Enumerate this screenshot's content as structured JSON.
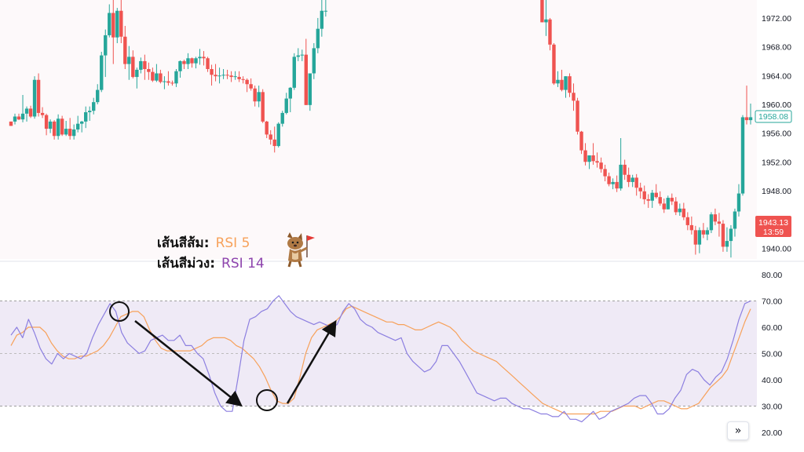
{
  "legend": {
    "orange_label": "เส้นสีส้ม:",
    "orange_value": "RSI 5",
    "purple_label": "เส้นสีม่วง:",
    "purple_value": "RSI 14",
    "orange_color": "#f7a15a",
    "purple_color": "#8e44ad"
  },
  "price_tags": {
    "current_price": "1958.08",
    "current_color": "#26a69a",
    "red_price": "1943.13",
    "red_countdown": "13:59",
    "red_color": "#ef5350"
  },
  "scroll_button_label": "»",
  "icons": {
    "scroll": "double-chevron-right-icon",
    "mascot": "dog-with-flag-mascot"
  },
  "chart_data": [
    {
      "type": "candlestick",
      "title": "",
      "y_ticks": [
        "1972.00",
        "1968.00",
        "1964.00",
        "1960.00",
        "1956.00",
        "1952.00",
        "1948.00",
        "1944.00",
        "1940.00"
      ],
      "ylim": [
        1938.5,
        1974.5
      ],
      "up_color": "#26a69a",
      "down_color": "#ef5350",
      "note": "values in price units; null = bar off-screen",
      "candles": [
        [
          1957.6,
          1957.6,
          1957.0,
          1957.0
        ],
        [
          1957.6,
          1958.7,
          1957.2,
          1958.3
        ],
        [
          1958.3,
          1958.7,
          1957.8,
          1957.9
        ],
        [
          1957.9,
          1961.3,
          1957.5,
          1958.7
        ],
        [
          1958.7,
          1959.7,
          1957.6,
          1959.4
        ],
        [
          1959.4,
          1959.8,
          1958.1,
          1958.3
        ],
        [
          1958.3,
          1963.9,
          1958.0,
          1963.4
        ],
        [
          1963.4,
          1964.3,
          1958.3,
          1958.8
        ],
        [
          1958.8,
          1959.6,
          1958.1,
          1958.5
        ],
        [
          1958.5,
          1958.7,
          1955.7,
          1956.6
        ],
        [
          1956.6,
          1957.9,
          1956.0,
          1957.6
        ],
        [
          1957.6,
          1957.8,
          1955.1,
          1955.6
        ],
        [
          1955.6,
          1958.6,
          1955.1,
          1958.0
        ],
        [
          1958.0,
          1958.4,
          1955.6,
          1955.8
        ],
        [
          1955.8,
          1957.7,
          1955.6,
          1956.6
        ],
        [
          1956.6,
          1958.1,
          1955.1,
          1955.6
        ],
        [
          1955.6,
          1957.2,
          1955.1,
          1956.5
        ],
        [
          1956.5,
          1958.4,
          1956.1,
          1957.3
        ],
        [
          1957.3,
          1957.7,
          1956.1,
          1957.6
        ],
        [
          1957.6,
          1959.7,
          1956.7,
          1958.9
        ],
        [
          1958.9,
          1959.7,
          1957.7,
          1959.1
        ],
        [
          1959.1,
          1960.9,
          1958.6,
          1960.3
        ],
        [
          1960.3,
          1962.8,
          1960.0,
          1962.0
        ],
        [
          1962.0,
          1967.3,
          1961.7,
          1966.8
        ],
        [
          1966.8,
          1970.4,
          1963.8,
          1969.6
        ],
        [
          1969.6,
          1973.9,
          1969.3,
          1972.7
        ],
        [
          1972.7,
          1974.5,
          1965.6,
          1969.3
        ],
        [
          1969.3,
          1973.4,
          1968.5,
          1973.0
        ],
        [
          1973.0,
          1974.5,
          1968.5,
          1969.4
        ],
        [
          1969.4,
          1970.9,
          1964.9,
          1965.6
        ],
        [
          1965.6,
          1968.1,
          1963.4,
          1966.6
        ],
        [
          1966.6,
          1967.5,
          1963.6,
          1963.8
        ],
        [
          1963.8,
          1965.1,
          1962.2,
          1964.8
        ],
        [
          1964.8,
          1966.5,
          1964.3,
          1966.0
        ],
        [
          1966.0,
          1966.9,
          1963.4,
          1964.9
        ],
        [
          1964.9,
          1965.8,
          1963.4,
          1964.5
        ],
        [
          1964.5,
          1965.1,
          1963.1,
          1963.3
        ],
        [
          1963.3,
          1965.6,
          1963.1,
          1964.3
        ],
        [
          1964.3,
          1964.8,
          1962.9,
          1963.1
        ],
        [
          1963.1,
          1963.9,
          1962.1,
          1963.2
        ],
        [
          1963.2,
          1964.6,
          1962.6,
          1963.0
        ],
        [
          1963.0,
          1963.3,
          1962.6,
          1962.9
        ],
        [
          1962.9,
          1964.9,
          1962.4,
          1964.6
        ],
        [
          1964.6,
          1966.1,
          1963.7,
          1966.0
        ],
        [
          1966.0,
          1966.2,
          1964.9,
          1965.6
        ],
        [
          1965.6,
          1967.1,
          1964.9,
          1966.4
        ],
        [
          1966.4,
          1966.5,
          1965.1,
          1965.7
        ],
        [
          1965.7,
          1966.6,
          1965.0,
          1966.4
        ],
        [
          1966.4,
          1967.7,
          1965.5,
          1966.6
        ],
        [
          1966.6,
          1967.4,
          1965.4,
          1966.4
        ],
        [
          1966.4,
          1966.6,
          1964.5,
          1964.9
        ],
        [
          1964.9,
          1965.5,
          1962.6,
          1964.1
        ],
        [
          1964.1,
          1965.6,
          1963.2,
          1963.9
        ],
        [
          1963.9,
          1965.1,
          1962.9,
          1964.0
        ],
        [
          1964.0,
          1964.9,
          1963.5,
          1964.1
        ],
        [
          1964.1,
          1964.8,
          1963.5,
          1964.0
        ],
        [
          1964.0,
          1964.6,
          1963.1,
          1963.8
        ],
        [
          1963.8,
          1964.6,
          1963.4,
          1963.9
        ],
        [
          1963.8,
          1964.6,
          1963.1,
          1963.5
        ],
        [
          1963.5,
          1963.9,
          1962.9,
          1963.4
        ],
        [
          1963.4,
          1963.6,
          1961.7,
          1962.8
        ],
        [
          1962.8,
          1963.6,
          1961.9,
          1962.2
        ],
        [
          1962.2,
          1962.6,
          1959.7,
          1960.4
        ],
        [
          1960.4,
          1962.6,
          1959.6,
          1961.7
        ],
        [
          1961.7,
          1962.1,
          1957.4,
          1957.6
        ],
        [
          1957.6,
          1957.7,
          1955.3,
          1955.8
        ],
        [
          1955.8,
          1956.4,
          1954.4,
          1955.1
        ],
        [
          1955.1,
          1956.9,
          1953.3,
          1954.2
        ],
        [
          1954.2,
          1957.5,
          1954.0,
          1957.3
        ],
        [
          1957.3,
          1959.1,
          1956.9,
          1958.8
        ],
        [
          1958.8,
          1961.6,
          1958.6,
          1960.8
        ],
        [
          1960.8,
          1962.4,
          1958.9,
          1962.3
        ],
        [
          1962.3,
          1967.1,
          1962.0,
          1966.6
        ],
        [
          1966.6,
          1967.8,
          1966.0,
          1966.8
        ],
        [
          1966.8,
          1967.6,
          1966.0,
          1966.9
        ],
        [
          1966.9,
          1969.1,
          1959.9,
          1959.9
        ],
        [
          1959.9,
          1964.3,
          1959.1,
          1964.3
        ],
        [
          1964.3,
          1968.5,
          1963.5,
          1967.8
        ],
        [
          1967.8,
          1972.0,
          1967.1,
          1970.5
        ],
        [
          1970.5,
          1974.5,
          1969.4,
          1973.0
        ],
        [
          1973.0,
          1974.5,
          1972.2,
          1973.0
        ],
        null,
        null,
        null,
        null,
        null,
        null,
        null,
        null,
        null,
        null,
        null,
        null,
        null,
        null,
        null,
        null,
        null,
        null,
        null,
        null,
        null,
        null,
        null,
        null,
        null,
        null,
        null,
        null,
        null,
        null,
        null,
        null,
        null,
        null,
        null,
        null,
        null,
        null,
        null,
        null,
        null,
        null,
        null,
        null,
        null,
        null,
        null,
        null,
        null,
        null,
        null,
        null,
        null,
        null,
        [
          1974.5,
          1974.5,
          1971.4,
          1971.4
        ],
        [
          1971.4,
          1974.5,
          1969.5,
          1971.8
        ],
        [
          1971.8,
          1972.0,
          1967.5,
          1968.3
        ],
        [
          1968.3,
          1968.5,
          1962.7,
          1962.9
        ],
        [
          1962.9,
          1964.6,
          1962.4,
          1963.4
        ],
        [
          1963.4,
          1964.8,
          1961.8,
          1962.0
        ],
        [
          1962.0,
          1963.9,
          1960.9,
          1963.9
        ],
        [
          1963.9,
          1964.3,
          1961.0,
          1961.6
        ],
        [
          1961.6,
          1962.9,
          1959.1,
          1960.5
        ],
        [
          1960.5,
          1960.9,
          1955.8,
          1956.2
        ],
        [
          1956.2,
          1956.3,
          1953.1,
          1953.6
        ],
        [
          1953.6,
          1954.6,
          1951.5,
          1952.0
        ],
        [
          1952.0,
          1952.9,
          1951.0,
          1952.9
        ],
        [
          1952.9,
          1954.6,
          1951.6,
          1952.1
        ],
        [
          1952.1,
          1953.3,
          1951.2,
          1951.9
        ],
        [
          1951.9,
          1952.6,
          1950.5,
          1951.0
        ],
        [
          1951.0,
          1951.6,
          1949.3,
          1950.0
        ],
        [
          1950.0,
          1950.5,
          1948.6,
          1948.9
        ],
        [
          1948.9,
          1949.7,
          1948.2,
          1949.2
        ],
        [
          1949.2,
          1950.1,
          1947.8,
          1948.3
        ],
        [
          1948.3,
          1955.3,
          1948.0,
          1951.6
        ],
        [
          1951.6,
          1952.3,
          1949.5,
          1950.2
        ],
        [
          1950.2,
          1951.2,
          1948.5,
          1949.2
        ],
        [
          1949.2,
          1950.2,
          1948.5,
          1949.8
        ],
        [
          1949.8,
          1950.3,
          1947.3,
          1948.4
        ],
        [
          1948.4,
          1949.1,
          1946.9,
          1947.9
        ],
        [
          1947.9,
          1948.7,
          1946.1,
          1946.8
        ],
        [
          1946.8,
          1947.5,
          1945.6,
          1946.6
        ],
        [
          1946.6,
          1948.1,
          1945.6,
          1947.7
        ],
        [
          1947.7,
          1948.9,
          1946.9,
          1947.1
        ],
        [
          1947.1,
          1947.9,
          1945.9,
          1946.2
        ],
        [
          1946.2,
          1946.9,
          1944.9,
          1945.4
        ],
        [
          1945.4,
          1947.3,
          1945.4,
          1947.0
        ],
        [
          1947.0,
          1947.6,
          1946.0,
          1946.5
        ],
        [
          1946.5,
          1947.1,
          1944.6,
          1945.0
        ],
        [
          1945.0,
          1946.2,
          1944.5,
          1945.5
        ],
        [
          1945.5,
          1946.3,
          1943.9,
          1944.3
        ],
        [
          1944.3,
          1945.0,
          1942.5,
          1943.2
        ],
        [
          1943.2,
          1944.4,
          1941.9,
          1942.5
        ],
        [
          1942.5,
          1943.1,
          1939.1,
          1940.5
        ],
        [
          1940.5,
          1942.9,
          1939.3,
          1942.5
        ],
        [
          1942.5,
          1943.5,
          1941.4,
          1941.9
        ],
        [
          1941.9,
          1942.9,
          1941.1,
          1942.5
        ],
        [
          1942.5,
          1945.0,
          1942.1,
          1944.7
        ],
        [
          1944.7,
          1945.5,
          1943.2,
          1943.7
        ],
        [
          1943.7,
          1944.9,
          1941.6,
          1943.4
        ],
        [
          1943.4,
          1943.9,
          1939.5,
          1940.2
        ],
        [
          1940.2,
          1942.9,
          1939.5,
          1941.0
        ],
        [
          1941.0,
          1943.2,
          1938.7,
          1942.7
        ],
        [
          1942.7,
          1945.5,
          1941.6,
          1945.1
        ],
        [
          1945.1,
          1948.9,
          1944.4,
          1947.6
        ],
        [
          1947.6,
          1958.5,
          1947.3,
          1958.2
        ],
        [
          1958.2,
          1962.6,
          1957.2,
          1957.8
        ],
        [
          1957.8,
          1960.1,
          1957.2,
          1958.2
        ]
      ]
    },
    {
      "type": "line",
      "title": "",
      "y_ticks": [
        "80.00",
        "70.00",
        "60.00",
        "50.00",
        "40.00",
        "30.00",
        "20.00"
      ],
      "ylim": [
        20,
        80
      ],
      "band": [
        30,
        70
      ],
      "series": [
        {
          "values": [
            53,
            57,
            58,
            60,
            60,
            60,
            58,
            54,
            51,
            49,
            48,
            48,
            49,
            49,
            50,
            51,
            53,
            56,
            60,
            64,
            65,
            66,
            66,
            64,
            59,
            55,
            52,
            51,
            51,
            51,
            51,
            51,
            52,
            53,
            55,
            56,
            56,
            56,
            55,
            53,
            52,
            50,
            48,
            45,
            41,
            36,
            32,
            31,
            31,
            33,
            41,
            50,
            56,
            59,
            60,
            61,
            62,
            64,
            67,
            68,
            67,
            66,
            65,
            64,
            63,
            62,
            62,
            61,
            61,
            60,
            59,
            59,
            60,
            61,
            62,
            61,
            60,
            58,
            55,
            53,
            51,
            50,
            49,
            48,
            47,
            45,
            43,
            41,
            39,
            37,
            35,
            33,
            31,
            30,
            29,
            28,
            27,
            27,
            27,
            27,
            27,
            27,
            28,
            28,
            28,
            29,
            30,
            30,
            30,
            29,
            30,
            31,
            32,
            32,
            31,
            30,
            29,
            29,
            30,
            31,
            34,
            37,
            39,
            41,
            44,
            50,
            56,
            62,
            67
          ]
        },
        {
          "values": [
            57,
            60,
            56,
            63,
            58,
            52,
            48,
            46,
            50,
            48,
            50,
            49,
            48,
            50,
            56,
            61,
            65,
            69,
            66,
            58,
            54,
            52,
            50,
            51,
            55,
            56,
            57,
            55,
            55,
            57,
            53,
            53,
            50,
            48,
            42,
            35,
            30,
            28,
            28,
            41,
            55,
            63,
            64,
            66,
            67,
            70,
            72,
            69,
            66,
            64,
            63,
            62,
            61,
            62,
            61,
            60,
            61,
            66,
            69,
            67,
            63,
            61,
            60,
            58,
            57,
            56,
            55,
            56,
            50,
            47,
            45,
            43,
            44,
            47,
            53,
            53,
            50,
            47,
            43,
            39,
            35,
            34,
            33,
            32,
            33,
            33,
            31,
            30,
            29,
            29,
            28,
            27,
            27,
            26,
            26,
            28,
            25,
            25,
            24,
            26,
            28,
            25,
            26,
            28,
            29,
            30,
            31,
            33,
            34,
            34,
            31,
            27,
            27,
            29,
            33,
            36,
            42,
            44,
            43,
            40,
            38,
            41,
            43,
            48,
            55,
            63,
            69,
            70
          ]
        }
      ]
    }
  ]
}
